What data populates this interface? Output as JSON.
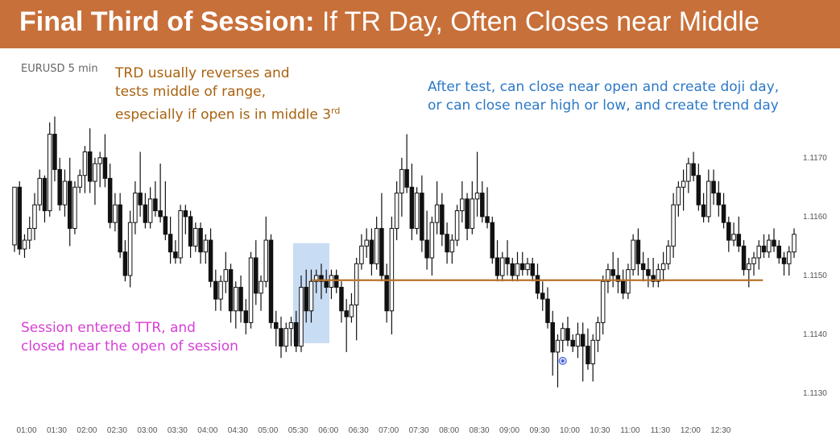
{
  "header": {
    "title_bold": "Final Third of Session:",
    "title_rest": " If TR Day, Often Closes near Middle"
  },
  "chart_data": {
    "type": "candlestick",
    "symbol": "EURUSD 5 min",
    "y_ticks": [
      "1.1170",
      "1.1160",
      "1.1150",
      "1.1140",
      "1.1130"
    ],
    "ylim": [
      1.1127,
      1.1179
    ],
    "x_ticks": [
      "01:00",
      "01:30",
      "02:00",
      "02:30",
      "03:00",
      "03:30",
      "04:00",
      "04:30",
      "05:00",
      "05:30",
      "06:00",
      "06:30",
      "07:00",
      "07:30",
      "08:00",
      "08:30",
      "09:00",
      "09:30",
      "10:00",
      "10:30",
      "11:00",
      "11:30",
      "12:00",
      "12:30"
    ],
    "grid": false,
    "candles": [
      [
        1.11552,
        1.1165,
        1.1154,
        1.1165
      ],
      [
        1.1165,
        1.1166,
        1.11535,
        1.11545
      ],
      [
        1.11545,
        1.1157,
        1.1153,
        1.1156
      ],
      [
        1.1156,
        1.116,
        1.11545,
        1.1158
      ],
      [
        1.1158,
        1.1164,
        1.1156,
        1.1162
      ],
      [
        1.1162,
        1.1168,
        1.1161,
        1.11665
      ],
      [
        1.11665,
        1.1167,
        1.1159,
        1.1161
      ],
      [
        1.1161,
        1.1176,
        1.116,
        1.1174
      ],
      [
        1.1174,
        1.1177,
        1.1166,
        1.1168
      ],
      [
        1.1168,
        1.117,
        1.1161,
        1.1162
      ],
      [
        1.1162,
        1.1168,
        1.116,
        1.1166
      ],
      [
        1.1166,
        1.117,
        1.1155,
        1.1158
      ],
      [
        1.1158,
        1.1166,
        1.1157,
        1.1165
      ],
      [
        1.1165,
        1.1168,
        1.1164,
        1.1167
      ],
      [
        1.1167,
        1.1172,
        1.1164,
        1.1171
      ],
      [
        1.1171,
        1.1175,
        1.1164,
        1.1166
      ],
      [
        1.1166,
        1.117,
        1.1162,
        1.1169
      ],
      [
        1.1169,
        1.1171,
        1.1165,
        1.117
      ],
      [
        1.117,
        1.1174,
        1.1165,
        1.11665
      ],
      [
        1.11665,
        1.1169,
        1.1158,
        1.1159
      ],
      [
        1.1159,
        1.1164,
        1.11575,
        1.1162
      ],
      [
        1.1162,
        1.1164,
        1.1153,
        1.1154
      ],
      [
        1.1154,
        1.1156,
        1.1149,
        1.115
      ],
      [
        1.115,
        1.1161,
        1.1148,
        1.1159
      ],
      [
        1.1159,
        1.1166,
        1.1157,
        1.1164
      ],
      [
        1.1164,
        1.1171,
        1.116,
        1.1162
      ],
      [
        1.1162,
        1.1164,
        1.1158,
        1.1159
      ],
      [
        1.1159,
        1.1165,
        1.1158,
        1.1163
      ],
      [
        1.1163,
        1.1166,
        1.116,
        1.1161
      ],
      [
        1.1161,
        1.1169,
        1.1159,
        1.116
      ],
      [
        1.116,
        1.1166,
        1.1156,
        1.1157
      ],
      [
        1.1157,
        1.116,
        1.1152,
        1.1154
      ],
      [
        1.1154,
        1.1156,
        1.1152,
        1.1153
      ],
      [
        1.1153,
        1.1162,
        1.1152,
        1.1161
      ],
      [
        1.1161,
        1.1162,
        1.1157,
        1.116
      ],
      [
        1.116,
        1.1161,
        1.1153,
        1.1155
      ],
      [
        1.1155,
        1.1159,
        1.1154,
        1.1158
      ],
      [
        1.1158,
        1.1159,
        1.1152,
        1.1154
      ],
      [
        1.1154,
        1.1157,
        1.1152,
        1.1156
      ],
      [
        1.1156,
        1.1158,
        1.1148,
        1.1149
      ],
      [
        1.1149,
        1.1151,
        1.1144,
        1.1146
      ],
      [
        1.1146,
        1.115,
        1.1144,
        1.1149
      ],
      [
        1.1149,
        1.1154,
        1.1147,
        1.1151
      ],
      [
        1.1151,
        1.1152,
        1.1142,
        1.1144
      ],
      [
        1.1144,
        1.1149,
        1.1141,
        1.1148
      ],
      [
        1.1148,
        1.115,
        1.1142,
        1.1144
      ],
      [
        1.1144,
        1.1146,
        1.114,
        1.1142
      ],
      [
        1.1142,
        1.1154,
        1.1141,
        1.1153
      ],
      [
        1.1153,
        1.1156,
        1.1145,
        1.1147
      ],
      [
        1.1147,
        1.115,
        1.1144,
        1.1149
      ],
      [
        1.1149,
        1.116,
        1.1148,
        1.1156
      ],
      [
        1.1156,
        1.1157,
        1.1141,
        1.1142
      ],
      [
        1.1142,
        1.1144,
        1.1138,
        1.1141
      ],
      [
        1.1141,
        1.1143,
        1.1136,
        1.1138
      ],
      [
        1.1138,
        1.1142,
        1.1137,
        1.1141
      ],
      [
        1.1141,
        1.1143,
        1.1138,
        1.1142
      ],
      [
        1.1142,
        1.1144,
        1.1137,
        1.1138
      ],
      [
        1.1138,
        1.115,
        1.1137,
        1.1148
      ],
      [
        1.1148,
        1.1151,
        1.1142,
        1.1144
      ],
      [
        1.1144,
        1.1151,
        1.1142,
        1.1149
      ],
      [
        1.1149,
        1.1151,
        1.1147,
        1.115
      ],
      [
        1.115,
        1.1152,
        1.1146,
        1.1149
      ],
      [
        1.1149,
        1.1151,
        1.1147,
        1.1148
      ],
      [
        1.1148,
        1.1151,
        1.1146,
        1.115
      ],
      [
        1.115,
        1.1151,
        1.1147,
        1.1148
      ],
      [
        1.1148,
        1.1149,
        1.1142,
        1.1144
      ],
      [
        1.1144,
        1.1146,
        1.1137,
        1.1143
      ],
      [
        1.1143,
        1.1147,
        1.1142,
        1.1145
      ],
      [
        1.1145,
        1.1153,
        1.1139,
        1.1152
      ],
      [
        1.1152,
        1.1157,
        1.1151,
        1.1155
      ],
      [
        1.1155,
        1.1158,
        1.1153,
        1.1156
      ],
      [
        1.1156,
        1.1158,
        1.115,
        1.1152
      ],
      [
        1.1152,
        1.116,
        1.1151,
        1.1158
      ],
      [
        1.1158,
        1.1164,
        1.1149,
        1.115
      ],
      [
        1.115,
        1.1152,
        1.1142,
        1.1144
      ],
      [
        1.1144,
        1.116,
        1.114,
        1.1158
      ],
      [
        1.1158,
        1.1166,
        1.1156,
        1.1164
      ],
      [
        1.1164,
        1.117,
        1.116,
        1.1168
      ],
      [
        1.1168,
        1.1174,
        1.1164,
        1.1165
      ],
      [
        1.1165,
        1.1169,
        1.1156,
        1.1158
      ],
      [
        1.1158,
        1.1165,
        1.1157,
        1.1164
      ],
      [
        1.1164,
        1.1167,
        1.1154,
        1.1156
      ],
      [
        1.1156,
        1.1161,
        1.1151,
        1.1153
      ],
      [
        1.1153,
        1.116,
        1.115,
        1.1159
      ],
      [
        1.1159,
        1.1166,
        1.1157,
        1.1162
      ],
      [
        1.1162,
        1.1164,
        1.1155,
        1.1157
      ],
      [
        1.1157,
        1.1159,
        1.1152,
        1.1154
      ],
      [
        1.1154,
        1.1157,
        1.1152,
        1.1156
      ],
      [
        1.1156,
        1.1162,
        1.1155,
        1.1161
      ],
      [
        1.1161,
        1.1166,
        1.1159,
        1.1163
      ],
      [
        1.1163,
        1.1164,
        1.1156,
        1.1158
      ],
      [
        1.1158,
        1.1166,
        1.1157,
        1.1163
      ],
      [
        1.1163,
        1.1171,
        1.116,
        1.1164
      ],
      [
        1.1164,
        1.1166,
        1.1159,
        1.116
      ],
      [
        1.116,
        1.1165,
        1.1158,
        1.1159
      ],
      [
        1.1159,
        1.116,
        1.1152,
        1.1153
      ],
      [
        1.1153,
        1.1156,
        1.1149,
        1.115
      ],
      [
        1.115,
        1.1154,
        1.1149,
        1.1153
      ],
      [
        1.1153,
        1.1156,
        1.115,
        1.1152
      ],
      [
        1.1152,
        1.1153,
        1.1149,
        1.115
      ],
      [
        1.115,
        1.1154,
        1.1149,
        1.1152
      ],
      [
        1.1152,
        1.1154,
        1.115,
        1.1151
      ],
      [
        1.1151,
        1.1153,
        1.115,
        1.1152
      ],
      [
        1.1152,
        1.1153,
        1.1149,
        1.115
      ],
      [
        1.115,
        1.1152,
        1.1146,
        1.1147
      ],
      [
        1.1147,
        1.1149,
        1.1144,
        1.1146
      ],
      [
        1.1146,
        1.1148,
        1.1141,
        1.1142
      ],
      [
        1.1142,
        1.1144,
        1.1133,
        1.1137
      ],
      [
        1.1137,
        1.114,
        1.1131,
        1.1139
      ],
      [
        1.1139,
        1.1142,
        1.1137,
        1.1141
      ],
      [
        1.1141,
        1.1143,
        1.1138,
        1.1139
      ],
      [
        1.1139,
        1.114,
        1.1137,
        1.1138
      ],
      [
        1.1138,
        1.1142,
        1.1136,
        1.114
      ],
      [
        1.114,
        1.1142,
        1.1132,
        1.1138
      ],
      [
        1.1138,
        1.1141,
        1.1134,
        1.1135
      ],
      [
        1.1135,
        1.114,
        1.1132,
        1.1139
      ],
      [
        1.1139,
        1.1143,
        1.1137,
        1.1142
      ],
      [
        1.1142,
        1.115,
        1.114,
        1.1149
      ],
      [
        1.1149,
        1.1152,
        1.1147,
        1.1151
      ],
      [
        1.1151,
        1.1154,
        1.1148,
        1.115
      ],
      [
        1.115,
        1.1153,
        1.1147,
        1.1149
      ],
      [
        1.1149,
        1.1151,
        1.1146,
        1.1147
      ],
      [
        1.1147,
        1.1152,
        1.1146,
        1.1151
      ],
      [
        1.1151,
        1.1157,
        1.115,
        1.1156
      ],
      [
        1.1156,
        1.1158,
        1.115,
        1.1152
      ],
      [
        1.1152,
        1.1154,
        1.1149,
        1.1151
      ],
      [
        1.1151,
        1.1153,
        1.1148,
        1.115
      ],
      [
        1.115,
        1.1153,
        1.1148,
        1.1149
      ],
      [
        1.1149,
        1.1152,
        1.1148,
        1.1151
      ],
      [
        1.1151,
        1.1154,
        1.1149,
        1.1152
      ],
      [
        1.1152,
        1.1156,
        1.1151,
        1.1155
      ],
      [
        1.1155,
        1.1164,
        1.1153,
        1.1162
      ],
      [
        1.1162,
        1.1166,
        1.116,
        1.1165
      ],
      [
        1.1165,
        1.1168,
        1.1161,
        1.1166
      ],
      [
        1.1166,
        1.117,
        1.1164,
        1.1169
      ],
      [
        1.1169,
        1.1171,
        1.1166,
        1.1167
      ],
      [
        1.1167,
        1.1169,
        1.1161,
        1.1162
      ],
      [
        1.1162,
        1.1164,
        1.1159,
        1.116
      ],
      [
        1.116,
        1.1168,
        1.1159,
        1.1166
      ],
      [
        1.1166,
        1.1168,
        1.1162,
        1.1164
      ],
      [
        1.1164,
        1.1166,
        1.116,
        1.1162
      ],
      [
        1.1162,
        1.1164,
        1.1158,
        1.1159
      ],
      [
        1.1159,
        1.116,
        1.1154,
        1.1156
      ],
      [
        1.1156,
        1.1159,
        1.1155,
        1.1157
      ],
      [
        1.1157,
        1.116,
        1.1154,
        1.1155
      ],
      [
        1.1155,
        1.1156,
        1.115,
        1.1151
      ],
      [
        1.1151,
        1.1153,
        1.1148,
        1.1152
      ],
      [
        1.1152,
        1.1154,
        1.115,
        1.1153
      ],
      [
        1.1153,
        1.1156,
        1.1151,
        1.1155
      ],
      [
        1.1155,
        1.1157,
        1.1153,
        1.1154
      ],
      [
        1.1154,
        1.1157,
        1.1153,
        1.1156
      ],
      [
        1.1156,
        1.1158,
        1.1154,
        1.1155
      ],
      [
        1.1155,
        1.1156,
        1.1152,
        1.1153
      ],
      [
        1.1153,
        1.1154,
        1.115,
        1.1152
      ],
      [
        1.1152,
        1.1155,
        1.115,
        1.1154
      ],
      [
        1.1154,
        1.1158,
        1.1153,
        1.1157
      ]
    ]
  },
  "session_box": {
    "x_from": 56,
    "x_to": 62,
    "y_from": 1.11555,
    "y_to": 1.11385,
    "color": "#b0cdee"
  },
  "horizontal_line": {
    "value": 1.11492,
    "x_from": 60,
    "x_to": 148,
    "color": "#b8732a"
  },
  "marker": {
    "index": 109,
    "value": 1.11355,
    "color": "#3a5cd8"
  },
  "annotations": [
    {
      "lines": [
        "TRD usually reverses and",
        "tests middle of range,",
        "especially if open is in middle 3"
      ],
      "sup": "rd",
      "color": "#a8620f"
    },
    {
      "lines": [
        "After test, can close near open and create doji day,",
        "or can close near high or low, and create trend day"
      ],
      "color": "#2c78c6"
    },
    {
      "lines": [
        "Session entered TTR, and",
        "closed near the open of session"
      ],
      "color": "#d63fd6"
    }
  ]
}
